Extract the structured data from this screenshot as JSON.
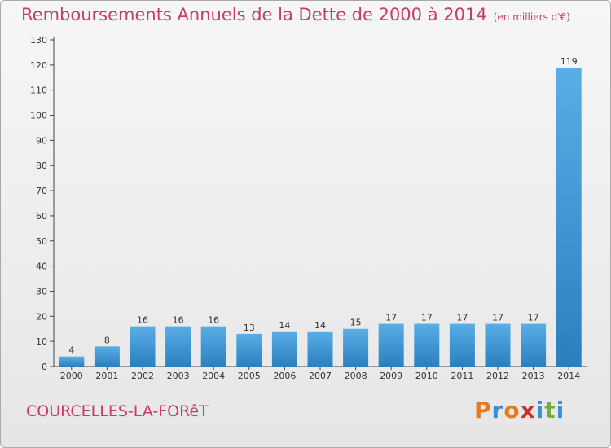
{
  "title": "Remboursements Annuels de la Dette de 2000 à 2014",
  "unit": "(en milliers d'€)",
  "commune": "COURCELLES-LA-FORêT",
  "logo": "Proxiti",
  "colors": {
    "title": "#c83a6a",
    "bar_top": "#5aaee6",
    "bar_bottom": "#2a7fbf",
    "logo": [
      "#e87a1e",
      "#3a8fd0",
      "#e87a1e",
      "#c8332e",
      "#3a8fd0",
      "#6ab23a",
      "#3a8fd0"
    ]
  },
  "chart_data": {
    "type": "bar",
    "title": "Remboursements Annuels de la Dette de 2000 à 2014",
    "xlabel": "",
    "ylabel": "",
    "categories": [
      "2000",
      "2001",
      "2002",
      "2003",
      "2004",
      "2005",
      "2006",
      "2007",
      "2008",
      "2009",
      "2010",
      "2011",
      "2012",
      "2013",
      "2014"
    ],
    "values": [
      4,
      8,
      16,
      16,
      16,
      13,
      14,
      14,
      15,
      17,
      17,
      17,
      17,
      17,
      119
    ],
    "ylim": [
      0,
      130
    ],
    "yticks": [
      0,
      10,
      20,
      30,
      40,
      50,
      60,
      70,
      80,
      90,
      100,
      110,
      120,
      130
    ],
    "grid": false,
    "data_labels": true
  }
}
